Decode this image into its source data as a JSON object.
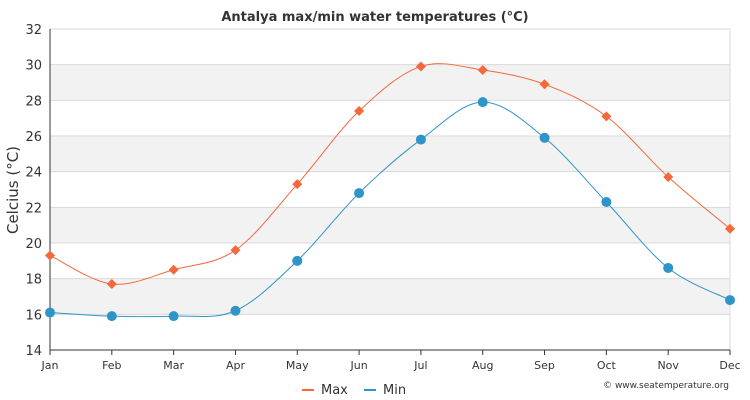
{
  "chart_data": {
    "type": "line",
    "title": "Antalya max/min water temperatures (°C)",
    "xlabel": "",
    "ylabel": "Celcius (°C)",
    "categories": [
      "Jan",
      "Feb",
      "Mar",
      "Apr",
      "May",
      "Jun",
      "Jul",
      "Aug",
      "Sep",
      "Oct",
      "Nov",
      "Dec"
    ],
    "ylim": [
      14,
      32
    ],
    "yticks": [
      14,
      16,
      18,
      20,
      22,
      24,
      26,
      28,
      30,
      32
    ],
    "grid": true,
    "legend_position": "bottom-center",
    "series": [
      {
        "name": "Max",
        "color": "#f4683c",
        "marker": "diamond",
        "values": [
          19.3,
          17.7,
          18.5,
          19.6,
          23.3,
          27.4,
          29.9,
          29.7,
          28.9,
          27.1,
          23.7,
          20.8
        ]
      },
      {
        "name": "Min",
        "color": "#2f94c7",
        "marker": "circle",
        "values": [
          16.1,
          15.9,
          15.9,
          16.2,
          19.0,
          22.8,
          25.8,
          27.9,
          25.9,
          22.3,
          18.6,
          16.8
        ]
      }
    ]
  },
  "credit": "© www.seatemperature.org"
}
